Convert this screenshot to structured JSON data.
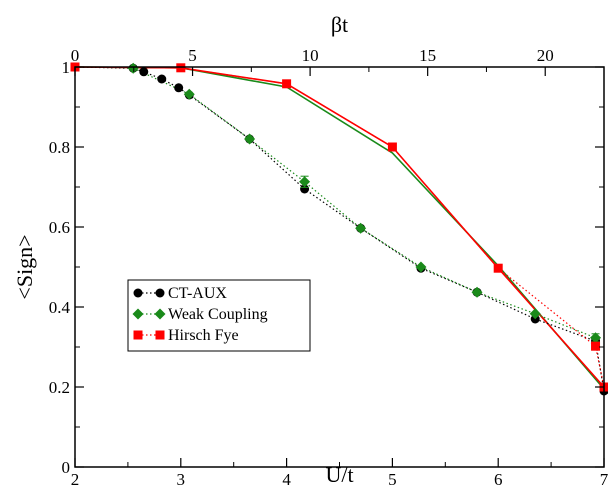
{
  "chart_data": {
    "type": "scatter",
    "xlabel": "U/t",
    "ylabel": "<Sign>",
    "top_xlabel": "βt",
    "xlim": [
      2,
      7
    ],
    "ylim": [
      0,
      1
    ],
    "xticks": [
      "2",
      "3",
      "4",
      "5",
      "6",
      "7"
    ],
    "yticks": [
      "0",
      "0.2",
      "0.4",
      "0.6",
      "0.8",
      "1"
    ],
    "top_xlim": [
      0,
      22.5
    ],
    "top_xticks": [
      "0",
      "5",
      "10",
      "15",
      "20"
    ],
    "legend_position": "lower-left",
    "series": [
      {
        "name": "CT-AUX",
        "color": "#000000",
        "marker": "circle",
        "line": "dotted",
        "points": [
          {
            "x": 2.0,
            "y": 1.0
          },
          {
            "x": 2.55,
            "y": 0.997
          },
          {
            "x": 2.65,
            "y": 0.988
          },
          {
            "x": 2.82,
            "y": 0.97
          },
          {
            "x": 2.98,
            "y": 0.948
          },
          {
            "x": 3.08,
            "y": 0.93
          },
          {
            "x": 3.65,
            "y": 0.82
          },
          {
            "x": 4.17,
            "y": 0.695
          },
          {
            "x": 4.7,
            "y": 0.597
          },
          {
            "x": 5.27,
            "y": 0.497
          },
          {
            "x": 5.8,
            "y": 0.437
          },
          {
            "x": 6.35,
            "y": 0.37
          },
          {
            "x": 6.92,
            "y": 0.315
          },
          {
            "x": 7.0,
            "y": 0.19
          }
        ]
      },
      {
        "name": "Weak Coupling",
        "color": "#1a8a1a",
        "marker": "diamond",
        "line": "dotted",
        "points": [
          {
            "x": 2.55,
            "y": 0.997
          },
          {
            "x": 3.08,
            "y": 0.932
          },
          {
            "x": 3.65,
            "y": 0.82
          },
          {
            "x": 4.17,
            "y": 0.713,
            "err": 0.014
          },
          {
            "x": 4.7,
            "y": 0.597
          },
          {
            "x": 5.27,
            "y": 0.5
          },
          {
            "x": 5.8,
            "y": 0.437
          },
          {
            "x": 6.35,
            "y": 0.383
          },
          {
            "x": 6.92,
            "y": 0.323,
            "err": 0.01
          }
        ]
      },
      {
        "name": "Hirsch Fye",
        "color": "#ff0000",
        "marker": "square",
        "line": "dotted",
        "points": [
          {
            "x": 2.0,
            "y": 1.0
          },
          {
            "x": 3.0,
            "y": 0.998
          },
          {
            "x": 4.0,
            "y": 0.958
          },
          {
            "x": 5.0,
            "y": 0.8
          },
          {
            "x": 6.0,
            "y": 0.497
          },
          {
            "x": 6.92,
            "y": 0.302
          },
          {
            "x": 7.0,
            "y": 0.2
          }
        ]
      }
    ],
    "extra_lines": [
      {
        "color": "#1a8a1a",
        "style": "solid",
        "points": [
          {
            "x": 2.0,
            "y": 1.0
          },
          {
            "x": 3.0,
            "y": 0.998
          },
          {
            "x": 4.0,
            "y": 0.95
          },
          {
            "x": 5.0,
            "y": 0.785
          },
          {
            "x": 6.0,
            "y": 0.503
          },
          {
            "x": 7.0,
            "y": 0.195
          }
        ]
      },
      {
        "color": "#ff0000",
        "style": "solid",
        "points": [
          {
            "x": 2.0,
            "y": 1.0
          },
          {
            "x": 3.0,
            "y": 0.998
          },
          {
            "x": 4.0,
            "y": 0.958
          },
          {
            "x": 5.0,
            "y": 0.8
          },
          {
            "x": 6.0,
            "y": 0.497
          },
          {
            "x": 7.0,
            "y": 0.2
          }
        ]
      }
    ]
  }
}
